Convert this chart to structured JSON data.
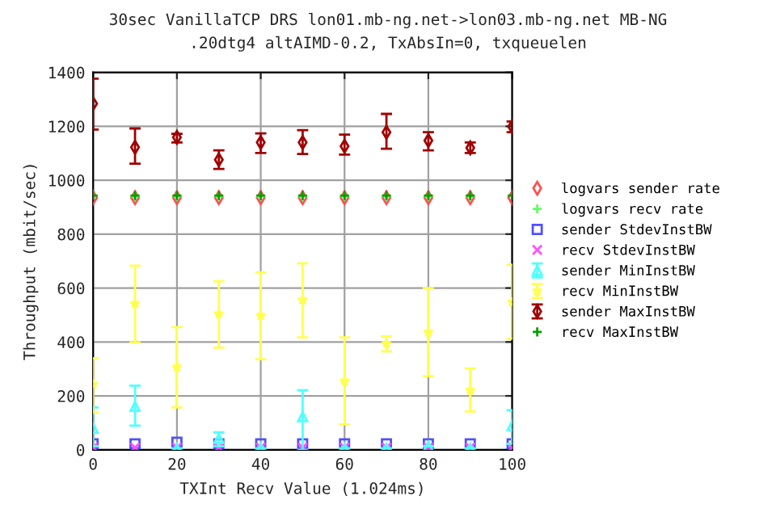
{
  "chart_data": {
    "type": "scatter",
    "title": "30sec VanillaTCP DRS lon01.mb-ng.net->lon03.mb-ng.net MB-NG",
    "subtitle": ".20dtg4 altAIMD-0.2, TxAbsIn=0, txqueuelen",
    "xlabel": "TXInt Recv Value (1.024ms)",
    "ylabel": "Throughput (mbit/sec)",
    "x": [
      0,
      10,
      20,
      30,
      40,
      50,
      60,
      70,
      80,
      90,
      100
    ],
    "xlim": [
      0,
      100
    ],
    "xticks": [
      0,
      20,
      40,
      60,
      80,
      100
    ],
    "ylim": [
      0,
      1400
    ],
    "yticks": [
      0,
      200,
      400,
      600,
      800,
      1000,
      1200,
      1400
    ],
    "grid": true,
    "legend": "right",
    "series": [
      {
        "name": "logvars sender rate",
        "color": "#ff5050",
        "marker": "diamond",
        "values": [
          935,
          935,
          935,
          935,
          935,
          935,
          935,
          935,
          935,
          935,
          935
        ]
      },
      {
        "name": "logvars recv rate",
        "color": "#60ff60",
        "marker": "cross",
        "values": [
          null,
          940,
          940,
          940,
          940,
          940,
          940,
          940,
          940,
          940,
          null
        ]
      },
      {
        "name": "sender StdevInstBW",
        "color": "#5050ff",
        "marker": "square",
        "values": [
          22,
          22,
          28,
          22,
          22,
          22,
          22,
          22,
          22,
          22,
          22
        ]
      },
      {
        "name": "recv StdevInstBW",
        "color": "#ff50ff",
        "marker": "x",
        "values": [
          8,
          8,
          8,
          8,
          8,
          8,
          8,
          8,
          8,
          8,
          8
        ]
      },
      {
        "name": "sender MinInstBW",
        "color": "#50ffff",
        "marker": "triangle",
        "values": [
          80,
          161,
          5,
          42,
          5,
          123,
          5,
          5,
          13,
          5,
          90
        ],
        "errors": [
          [
            13,
            157
          ],
          [
            90,
            238
          ],
          null,
          [
            13,
            65
          ],
          null,
          [
            0,
            221
          ],
          null,
          null,
          null,
          null,
          [
            22,
            147
          ]
        ]
      },
      {
        "name": "recv MinInstBW",
        "color": "#ffff50",
        "marker": "star",
        "values": [
          244,
          542,
          307,
          504,
          498,
          556,
          255,
          394,
          436,
          221,
          548
        ],
        "errors": [
          [
            138,
            340
          ],
          [
            398,
            683
          ],
          [
            157,
            455
          ],
          [
            379,
            625
          ],
          [
            336,
            658
          ],
          [
            417,
            692
          ],
          [
            94,
            417
          ],
          [
            365,
            421
          ],
          [
            273,
            600
          ],
          [
            142,
            302
          ],
          [
            412,
            687
          ]
        ]
      },
      {
        "name": "sender MaxInstBW",
        "color": "#a00000",
        "marker": "diamond",
        "values": [
          1284,
          1122,
          1159,
          1076,
          1140,
          1140,
          1126,
          1178,
          1147,
          1120,
          1199
        ],
        "errors": [
          [
            1188,
            1377
          ],
          [
            1061,
            1192
          ],
          [
            1140,
            1172
          ],
          [
            1042,
            1111
          ],
          [
            1101,
            1174
          ],
          [
            1097,
            1186
          ],
          [
            1095,
            1169
          ],
          [
            1117,
            1246
          ],
          [
            1111,
            1178
          ],
          [
            1101,
            1140
          ],
          [
            1178,
            1218
          ]
        ]
      },
      {
        "name": "recv MaxInstBW",
        "color": "#00a000",
        "marker": "cross",
        "values": [
          943,
          943,
          943,
          943,
          943,
          943,
          943,
          943,
          943,
          943,
          943
        ]
      }
    ]
  }
}
